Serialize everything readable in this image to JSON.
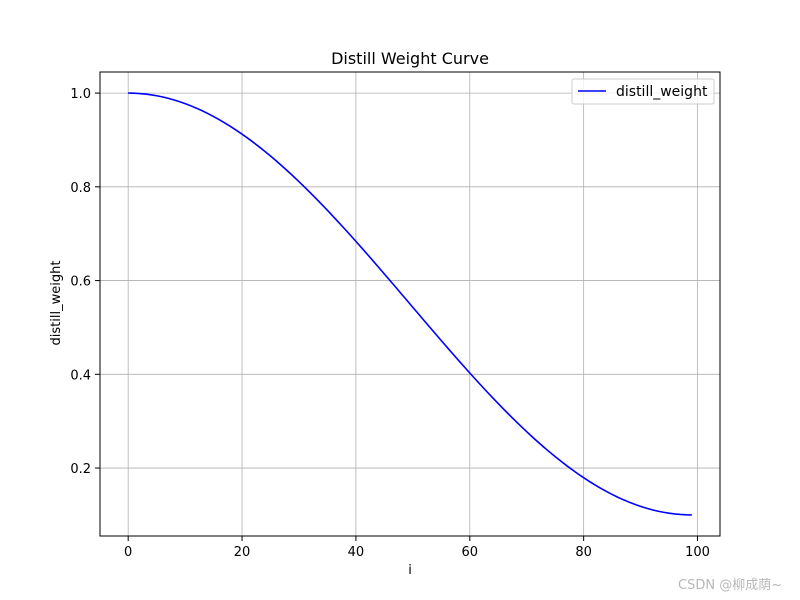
{
  "chart_data": {
    "type": "line",
    "title": "Distill Weight Curve",
    "xlabel": "i",
    "ylabel": "distill_weight",
    "xlim": [
      -4.95,
      103.95
    ],
    "ylim": [
      0.055,
      1.045
    ],
    "xticks": [
      0,
      20,
      40,
      60,
      80,
      100
    ],
    "yticks": [
      0.2,
      0.4,
      0.6,
      0.8,
      1.0
    ],
    "xtick_labels": [
      "0",
      "20",
      "40",
      "60",
      "80",
      "100"
    ],
    "ytick_labels": [
      "0.2",
      "0.4",
      "0.6",
      "0.8",
      "1.0"
    ],
    "grid": true,
    "legend_position": "top-right",
    "series": [
      {
        "name": "distill_weight",
        "color": "#0000ff",
        "formula_note": "y = 0.1 + 0.9*(1+cos(pi*i/99))/2 for i in 0..99",
        "x_start": 0,
        "x_end": 99,
        "y_min": 0.1,
        "y_max": 1.0
      }
    ]
  },
  "watermark": "CSDN @柳成荫~"
}
